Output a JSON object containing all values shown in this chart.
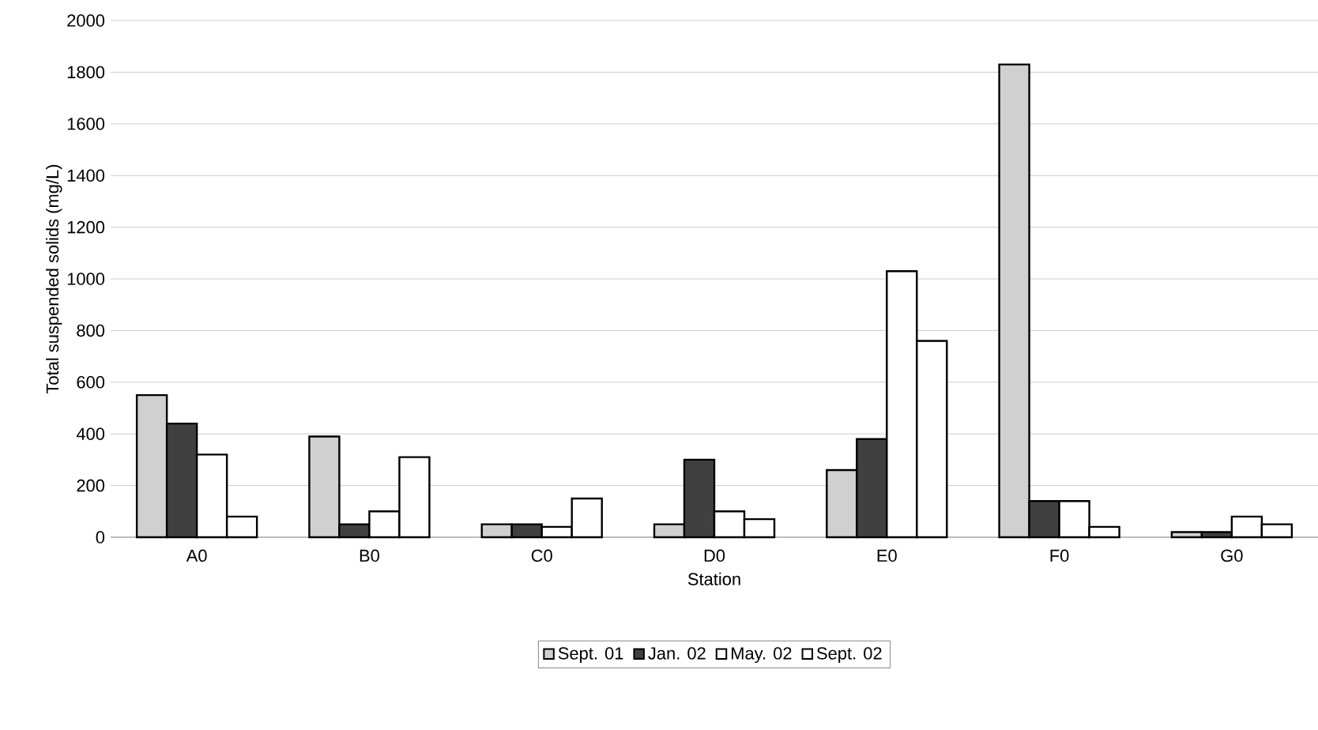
{
  "chart_data": {
    "type": "bar",
    "xlabel": "Station",
    "ylabel": "Total suspended solids (mg/L)",
    "categories": [
      "A0",
      "B0",
      "C0",
      "D0",
      "E0",
      "F0",
      "G0"
    ],
    "series": [
      {
        "name": "Sept. 01",
        "color": "#d0d0d0",
        "values": [
          550,
          390,
          50,
          50,
          260,
          1830,
          20
        ]
      },
      {
        "name": "Jan. 02",
        "color": "#404040",
        "values": [
          440,
          50,
          50,
          300,
          380,
          140,
          20
        ]
      },
      {
        "name": "May. 02",
        "color": "#ffffff",
        "values": [
          320,
          100,
          40,
          100,
          1030,
          140,
          80
        ]
      },
      {
        "name": "Sept. 02",
        "color": "#ffffff",
        "values": [
          80,
          310,
          150,
          70,
          760,
          40,
          50
        ]
      }
    ],
    "ylim": [
      0,
      2000
    ],
    "yticks": [
      0,
      200,
      400,
      600,
      800,
      1000,
      1200,
      1400,
      1600,
      1800,
      2000
    ],
    "grid": "y",
    "legend": "bottom"
  }
}
